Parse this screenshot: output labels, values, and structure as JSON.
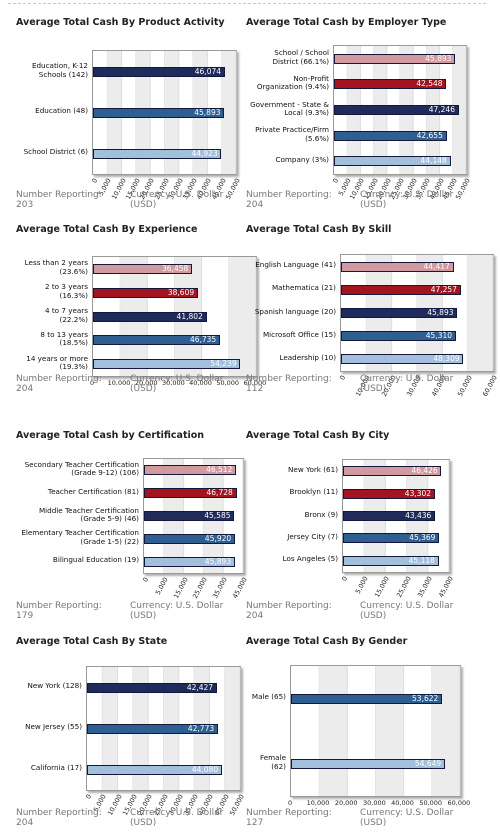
{
  "charts": [
    {
      "id": "product",
      "title": "Average Total Cash By Product Activity",
      "categories": [
        "Education, K-12 Schools (142)",
        "Education (48)",
        "School District (6)"
      ],
      "values": [
        46074,
        45893,
        44923
      ],
      "value_labels": [
        "46,074",
        "45,893",
        "44,923"
      ],
      "ticks": [
        "0",
        "5,000",
        "10,000",
        "15,000",
        "20,000",
        "25,000",
        "30,000",
        "35,000",
        "40,000",
        "45,000",
        "50,000"
      ],
      "xmax": 50000,
      "rotated": true,
      "colors": [
        "#1f2b5a",
        "#2f5e91",
        "#a2bfdc"
      ],
      "footer": {
        "number_reporting": "Number Reporting: 203",
        "currency": "Currency: U.S. Dollar (USD)"
      }
    },
    {
      "id": "employer",
      "title": "Average Total Cash by Employer Type",
      "categories": [
        "School / School District (66.1%)",
        "Non-Profit Organization (9.4%)",
        "Government - State & Local (9.3%)",
        "Private Practice/Firm (5.6%)",
        "Company (3%)"
      ],
      "values": [
        45893,
        42548,
        47246,
        42655,
        44148
      ],
      "value_labels": [
        "45,893",
        "42,548",
        "47,246",
        "42,655",
        "44,148"
      ],
      "ticks": [
        "0",
        "5,000",
        "10,000",
        "15,000",
        "20,000",
        "25,000",
        "30,000",
        "35,000",
        "40,000",
        "45,000",
        "50,000"
      ],
      "xmax": 50000,
      "rotated": true,
      "colors": [
        "#d09aa0",
        "#a3141e",
        "#1f2b5a",
        "#2f5e91",
        "#a2bfdc"
      ],
      "footer": {
        "number_reporting": "Number Reporting: 204",
        "currency": "Currency: U.S. Dollar (USD)"
      }
    },
    {
      "id": "experience",
      "title": "Average Total Cash By Experience",
      "categories": [
        "Less than 2 years (23.6%)",
        "2 to 3 years (16.3%)",
        "4 to 7 years (22.2%)",
        "8 to 13 years (18.5%)",
        "14 years or more (19.3%)"
      ],
      "values": [
        36458,
        38609,
        41802,
        46735,
        54239
      ],
      "value_labels": [
        "36,458",
        "38,609",
        "41,802",
        "46,735",
        "54,239"
      ],
      "ticks": [
        "0",
        "10,000",
        "20,000",
        "30,000",
        "40,000",
        "50,000",
        "60,000"
      ],
      "xmax": 60000,
      "rotated": false,
      "colors": [
        "#d09aa0",
        "#a3141e",
        "#1f2b5a",
        "#2f5e91",
        "#a2bfdc"
      ],
      "footer": {
        "number_reporting": "Number Reporting: 204",
        "currency": "Currency: U.S. Dollar (USD)"
      }
    },
    {
      "id": "skill",
      "title": "Average Total Cash By Skill",
      "categories": [
        "English Language (41)",
        "Mathematica (21)",
        "Spanish language (20)",
        "Microsoft Office (15)",
        "Leadership (10)"
      ],
      "values": [
        44417,
        47257,
        45893,
        45310,
        48309
      ],
      "value_labels": [
        "44,417",
        "47,257",
        "45,893",
        "45,310",
        "48,309"
      ],
      "ticks": [
        "0",
        "10,000",
        "20,000",
        "30,000",
        "40,000",
        "50,000",
        "60,000"
      ],
      "xmax": 60000,
      "rotated": true,
      "colors": [
        "#d09aa0",
        "#a3141e",
        "#1f2b5a",
        "#2f5e91",
        "#a2bfdc"
      ],
      "footer": {
        "number_reporting": "Number Reporting: 112",
        "currency": "Currency: U.S. Dollar (USD)"
      }
    },
    {
      "id": "certification",
      "title": "Average Total Cash by Certification",
      "categories": [
        "Secondary Teacher Certification (Grade 9-12) (106)",
        "Teacher Certification (81)",
        "Middle Teacher Certification (Grade 5-9) (46)",
        "Elementary Teacher Certification (Grade 1-5) (22)",
        "Bilingual Education (19)"
      ],
      "values": [
        46512,
        46728,
        45585,
        45920,
        45893
      ],
      "value_labels": [
        "46,512",
        "46,728",
        "45,585",
        "45,920",
        "45,893"
      ],
      "ticks": [
        "0",
        "5,000",
        "15,000",
        "25,000",
        "35,000",
        "45,000"
      ],
      "xmax": 50000,
      "rotated": true,
      "colors": [
        "#d09aa0",
        "#a3141e",
        "#1f2b5a",
        "#2f5e91",
        "#a2bfdc"
      ],
      "footer": {
        "number_reporting": "Number Reporting: 179",
        "currency": "Currency: U.S. Dollar (USD)"
      }
    },
    {
      "id": "city",
      "title": "Average Total Cash By City",
      "categories": [
        "New York (61)",
        "Brooklyn (11)",
        "Bronx (9)",
        "Jersey City (7)",
        "Los Angeles (5)"
      ],
      "values": [
        46426,
        43302,
        43436,
        45369,
        45118
      ],
      "value_labels": [
        "46,426",
        "43,302",
        "43,436",
        "45,369",
        "45,118"
      ],
      "ticks": [
        "0",
        "5,000",
        "15,000",
        "25,000",
        "35,000",
        "45,000"
      ],
      "xmax": 50000,
      "rotated": true,
      "colors": [
        "#d09aa0",
        "#a3141e",
        "#1f2b5a",
        "#2f5e91",
        "#a2bfdc"
      ],
      "footer": {
        "number_reporting": "Number Reporting: 204",
        "currency": "Currency: U.S. Dollar (USD)"
      }
    },
    {
      "id": "state",
      "title": "Average Total Cash By State",
      "categories": [
        "New York (128)",
        "New Jersey (55)",
        "California (17)"
      ],
      "values": [
        42427,
        42773,
        44080
      ],
      "value_labels": [
        "42,427",
        "42,773",
        "44,080"
      ],
      "ticks": [
        "0",
        "5,000",
        "10,000",
        "15,000",
        "20,000",
        "25,000",
        "30,000",
        "35,000",
        "40,000",
        "45,000",
        "50,000"
      ],
      "xmax": 50000,
      "rotated": true,
      "colors": [
        "#1f2b5a",
        "#2f5e91",
        "#a2bfdc"
      ],
      "footer": {
        "number_reporting": "Number Reporting: 204",
        "currency": "Currency: U.S. Dollar (USD)"
      }
    },
    {
      "id": "gender",
      "title": "Average Total Cash By Gender",
      "categories": [
        "Male (65)",
        "Female (62)"
      ],
      "values": [
        53622,
        54649
      ],
      "value_labels": [
        "53,622",
        "54,649"
      ],
      "ticks": [
        "0",
        "10,000",
        "20,000",
        "30,000",
        "40,000",
        "50,000",
        "60,000"
      ],
      "xmax": 60000,
      "rotated": false,
      "colors": [
        "#2f5e91",
        "#a2bfdc"
      ],
      "footer": {
        "number_reporting": "Number Reporting: 127",
        "currency": "Currency: U.S. Dollar (USD)"
      }
    }
  ],
  "chart_data": [
    {
      "type": "bar",
      "title": "Average Total Cash By Product Activity",
      "categories": [
        "Education, K-12 Schools (142)",
        "Education (48)",
        "School District (6)"
      ],
      "values": [
        46074,
        45893,
        44923
      ],
      "xlim": [
        0,
        50000
      ]
    },
    {
      "type": "bar",
      "title": "Average Total Cash by Employer Type",
      "categories": [
        "School / School District (66.1%)",
        "Non-Profit Organization (9.4%)",
        "Government - State & Local (9.3%)",
        "Private Practice/Firm (5.6%)",
        "Company (3%)"
      ],
      "values": [
        45893,
        42548,
        47246,
        42655,
        44148
      ],
      "xlim": [
        0,
        50000
      ]
    },
    {
      "type": "bar",
      "title": "Average Total Cash By Experience",
      "categories": [
        "Less than 2 years (23.6%)",
        "2 to 3 years (16.3%)",
        "4 to 7 years (22.2%)",
        "8 to 13 years (18.5%)",
        "14 years or more (19.3%)"
      ],
      "values": [
        36458,
        38609,
        41802,
        46735,
        54239
      ],
      "xlim": [
        0,
        60000
      ]
    },
    {
      "type": "bar",
      "title": "Average Total Cash By Skill",
      "categories": [
        "English Language (41)",
        "Mathematica (21)",
        "Spanish language (20)",
        "Microsoft Office (15)",
        "Leadership (10)"
      ],
      "values": [
        44417,
        47257,
        45893,
        45310,
        48309
      ],
      "xlim": [
        0,
        60000
      ]
    },
    {
      "type": "bar",
      "title": "Average Total Cash by Certification",
      "categories": [
        "Secondary Teacher Certification (Grade 9-12) (106)",
        "Teacher Certification (81)",
        "Middle Teacher Certification (Grade 5-9) (46)",
        "Elementary Teacher Certification (Grade 1-5) (22)",
        "Bilingual Education (19)"
      ],
      "values": [
        46512,
        46728,
        45585,
        45920,
        45893
      ],
      "xlim": [
        0,
        50000
      ]
    },
    {
      "type": "bar",
      "title": "Average Total Cash By City",
      "categories": [
        "New York (61)",
        "Brooklyn (11)",
        "Bronx (9)",
        "Jersey City (7)",
        "Los Angeles (5)"
      ],
      "values": [
        46426,
        43302,
        43436,
        45369,
        45118
      ],
      "xlim": [
        0,
        50000
      ]
    },
    {
      "type": "bar",
      "title": "Average Total Cash By State",
      "categories": [
        "New York (128)",
        "New Jersey (55)",
        "California (17)"
      ],
      "values": [
        42427,
        42773,
        44080
      ],
      "xlim": [
        0,
        50000
      ]
    },
    {
      "type": "bar",
      "title": "Average Total Cash By Gender",
      "categories": [
        "Male (65)",
        "Female (62)"
      ],
      "values": [
        53622,
        54649
      ],
      "xlim": [
        0,
        60000
      ]
    }
  ]
}
